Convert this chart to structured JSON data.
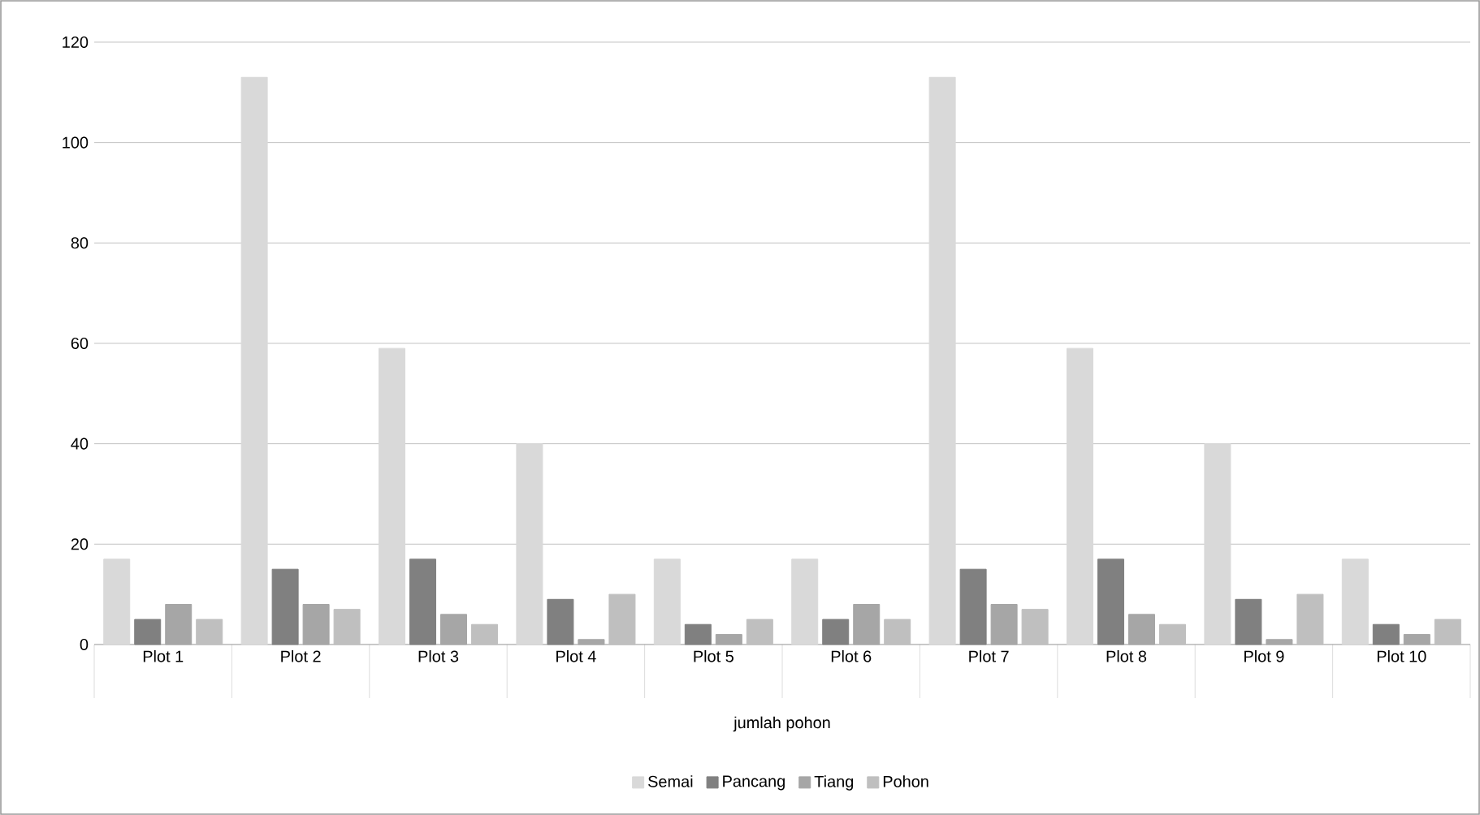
{
  "chart_data": {
    "type": "bar",
    "xlabel": "jumlah pohon",
    "categories": [
      "Plot 1",
      "Plot 2",
      "Plot 3",
      "Plot 4",
      "Plot 5",
      "Plot 6",
      "Plot 7",
      "Plot 8",
      "Plot 9",
      "Plot 10"
    ],
    "series": [
      {
        "name": "Semai",
        "color": "#d9d9d9",
        "values": [
          17,
          113,
          59,
          40,
          17,
          17,
          113,
          59,
          40,
          17
        ]
      },
      {
        "name": "Pancang",
        "color": "#808080",
        "values": [
          5,
          15,
          17,
          9,
          4,
          5,
          15,
          17,
          9,
          4
        ]
      },
      {
        "name": "Tiang",
        "color": "#a6a6a6",
        "values": [
          8,
          8,
          6,
          1,
          2,
          8,
          8,
          6,
          1,
          2
        ]
      },
      {
        "name": "Pohon",
        "color": "#bfbfbf",
        "values": [
          5,
          7,
          4,
          10,
          5,
          5,
          7,
          4,
          10,
          5
        ]
      }
    ],
    "ylim": [
      0,
      120
    ],
    "yticks": [
      0,
      20,
      40,
      60,
      80,
      100,
      120
    ],
    "grid": "y",
    "legend": "bottom"
  }
}
